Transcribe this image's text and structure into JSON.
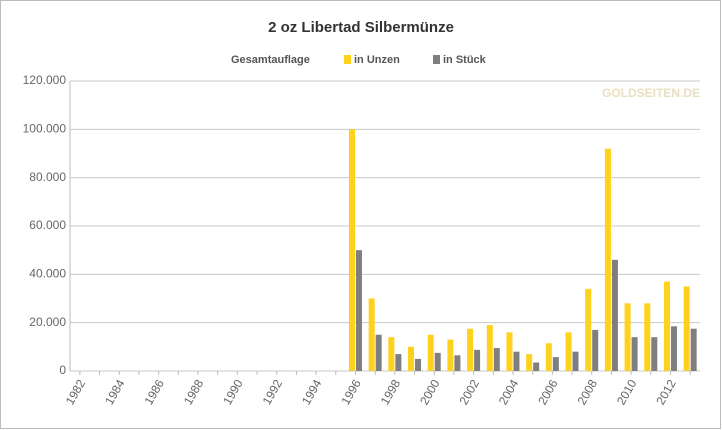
{
  "chart_data": {
    "type": "bar",
    "title": "2 oz Libertad Silbermünze",
    "legend_title": "Gesamtauflage",
    "watermark": "GOLDSEITEN.DE",
    "categories": [
      "1982",
      null,
      "1984",
      null,
      "1986",
      null,
      "1988",
      null,
      "1990",
      null,
      "1992",
      null,
      "1994",
      null,
      "1996",
      null,
      "1998",
      null,
      "2000",
      null,
      "2002",
      null,
      "2004",
      null,
      "2006",
      null,
      "2008",
      null,
      "2010",
      null,
      "2012",
      null
    ],
    "series": [
      {
        "name": "in Unzen",
        "color": "#ffd11a",
        "values": [
          null,
          null,
          null,
          null,
          null,
          null,
          null,
          null,
          null,
          null,
          null,
          null,
          null,
          null,
          100000,
          30000,
          14000,
          10000,
          15000,
          13000,
          17500,
          19000,
          16000,
          7000,
          11500,
          16000,
          34000,
          92000,
          28000,
          28000,
          37000,
          35000
        ]
      },
      {
        "name": "in Stück",
        "color": "#7f7f7f",
        "values": [
          null,
          null,
          null,
          null,
          null,
          null,
          null,
          null,
          null,
          null,
          null,
          null,
          null,
          null,
          50000,
          15000,
          7000,
          5000,
          7500,
          6500,
          8750,
          9500,
          8000,
          3500,
          5750,
          8000,
          17000,
          46000,
          14000,
          14000,
          18500,
          17500
        ]
      }
    ],
    "ylim": [
      0,
      120000
    ],
    "yticks": [
      0,
      {
        "value": 20000,
        "label": "20.000"
      },
      {
        "value": 40000,
        "label": "40.000"
      },
      {
        "value": 60000,
        "label": "60.000"
      },
      {
        "value": 80000,
        "label": "80.000"
      },
      {
        "value": 100000,
        "label": "100.000"
      },
      {
        "value": 120000,
        "label": "120.000"
      }
    ],
    "grid": true
  }
}
